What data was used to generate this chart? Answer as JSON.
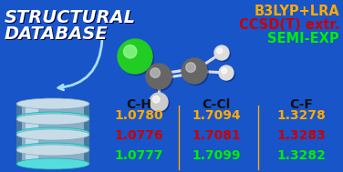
{
  "bg_color": "#1855c8",
  "title_line1": "STRUCTURAL",
  "title_line2": "DATABASE",
  "label_ch": "C-H",
  "label_ccl": "C-Cl",
  "label_cf": "C-F",
  "method1": "B3LYP+LRA",
  "method2": "CCSD(T) extr.",
  "method3": "SEMI-EXP",
  "method1_color": "#ffaa00",
  "method2_color": "#cc0000",
  "method3_color": "#00ee00",
  "row1": [
    "1.0780",
    "1.7094",
    "1.3278"
  ],
  "row2": [
    "1.0776",
    "1.7081",
    "1.3283"
  ],
  "row3": [
    "1.0777",
    "1.7099",
    "1.3282"
  ],
  "row1_color": "#ffaa00",
  "row2_color": "#cc0000",
  "row3_color": "#00ee00",
  "header_color": "#111111",
  "white": "#ffffff",
  "sep_color": "#ffaa00",
  "bond_color": "#dddddd",
  "cl_color": "#22cc22",
  "cl_hi": "#aaffaa",
  "c_color": "#666666",
  "c_hi": "#cccccc",
  "h_color": "#dddddd",
  "h_hi": "#ffffff",
  "f_color": "#cccccc",
  "f_hi": "#ffffff"
}
